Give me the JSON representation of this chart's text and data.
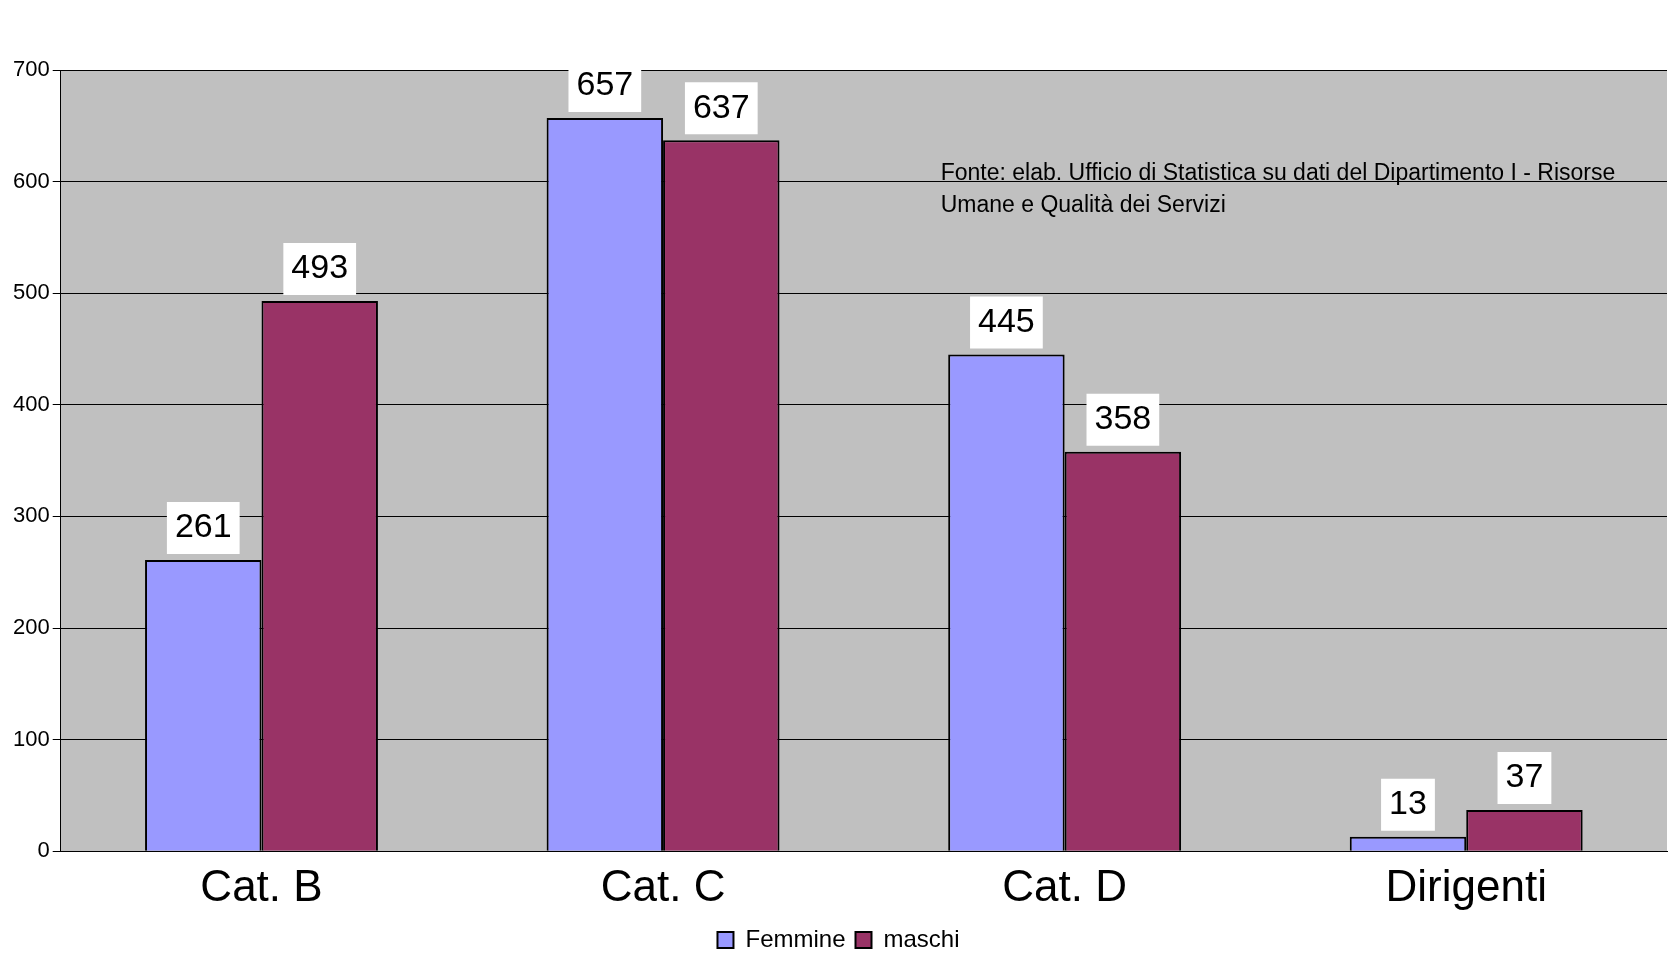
{
  "chart_data": {
    "type": "bar",
    "categories": [
      "Cat. B",
      "Cat. C",
      "Cat. D",
      "Dirigenti"
    ],
    "series": [
      {
        "name": "Femmine",
        "color": "#9999ff",
        "values": [
          261,
          657,
          445,
          13
        ]
      },
      {
        "name": "maschi",
        "color": "#993366",
        "values": [
          493,
          637,
          358,
          37
        ]
      }
    ],
    "ylim": [
      0,
      700
    ],
    "yticks": [
      0,
      100,
      200,
      300,
      400,
      500,
      600,
      700
    ],
    "grid": "y",
    "legend": "bottom",
    "data_labels": true,
    "annotations": [
      "Fonte: elab. Ufficio di Statistica su dati del Dipartimento I - Risorse Umane e Qualità dei Servizi"
    ]
  }
}
